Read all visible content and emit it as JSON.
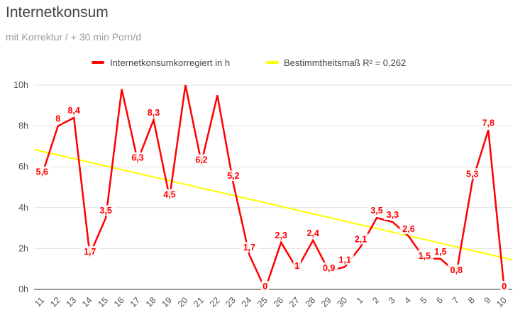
{
  "title": "Internetkonsum",
  "subtitle": "mit Korrektur / + 30 min Porn/d",
  "chart_data": {
    "type": "line",
    "categories": [
      "11",
      "12",
      "13",
      "14",
      "15",
      "16",
      "17",
      "18",
      "19",
      "20",
      "21",
      "22",
      "23",
      "24",
      "25",
      "26",
      "27",
      "28",
      "29",
      "30",
      "1",
      "2",
      "3",
      "4",
      "5",
      "6",
      "7",
      "8",
      "9",
      "10"
    ],
    "series": [
      {
        "name": "Internetkonsumkorregiert in h",
        "color": "#ff0000",
        "values": [
          5.6,
          8,
          8.4,
          1.7,
          3.5,
          9.8,
          6.3,
          8.3,
          4.5,
          10,
          6.2,
          9.5,
          5.2,
          1.7,
          0,
          2.3,
          1,
          2.4,
          0.9,
          1.1,
          2.1,
          3.5,
          3.3,
          2.6,
          1.5,
          1.5,
          0.8,
          5.3,
          7.8,
          0
        ],
        "labels": [
          "5,6",
          "8",
          "8,4",
          "1,7",
          "3,5",
          "",
          "6,3",
          "8,3",
          "4,5",
          "",
          "6,2",
          "",
          "5,2",
          "1,7",
          "0",
          "2,3",
          "1",
          "2,4",
          "0,9",
          "1,1",
          "2,1",
          "3,5",
          "3,3",
          "2,6",
          "1,5",
          "1,5",
          "0,8",
          "5,3",
          "7,8",
          "0"
        ]
      },
      {
        "name": "Bestimmtheitsmaß  R² = 0,262",
        "color": "#ffff00",
        "type": "trendline",
        "y_start": 6.85,
        "y_end": 1.45
      }
    ],
    "y_ticks": [
      "0h",
      "2h",
      "4h",
      "6h",
      "8h",
      "10h"
    ],
    "ylim": [
      0,
      10
    ],
    "grid": true,
    "legend_position": "top"
  }
}
